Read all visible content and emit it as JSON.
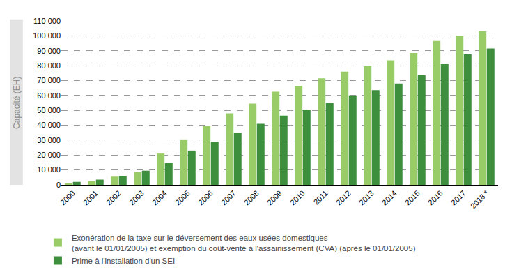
{
  "chart_data": {
    "type": "bar",
    "y_label": "Capacité (EH)",
    "categories": [
      "2000",
      "2001",
      "2002",
      "2003",
      "2004",
      "2005",
      "2006",
      "2007",
      "2008",
      "2009",
      "2010",
      "2011",
      "2012",
      "2013",
      "2014",
      "2015",
      "2016",
      "2017",
      "2018 *"
    ],
    "series": [
      {
        "name": "Exonération de la taxe sur le déversement des eaux usées domestiques\n(avant le 01/01/2005) et exemption du coût-vérité à l'assainissement (CVA) (après le 01/01/2005)",
        "color": "#99cc66",
        "values": [
          500,
          2500,
          5500,
          8500,
          21000,
          30500,
          39500,
          48000,
          54500,
          62500,
          66500,
          71500,
          76000,
          80000,
          83500,
          88500,
          96500,
          100000,
          103000
        ]
      },
      {
        "name": "Prime à l'installation d'un SEI",
        "color": "#3d8f3d",
        "values": [
          2000,
          3500,
          6000,
          9500,
          14500,
          23000,
          29000,
          35000,
          41000,
          46500,
          50500,
          55000,
          60000,
          63500,
          68000,
          73500,
          81000,
          87500,
          91500
        ]
      }
    ],
    "ylim": [
      0,
      110000
    ],
    "yticks": [
      0,
      {
        "value": 10000,
        "label": "10 000"
      },
      {
        "value": 20000,
        "label": "20 000"
      },
      {
        "value": 30000,
        "label": "30 000"
      },
      {
        "value": 40000,
        "label": "40 000"
      },
      {
        "value": 50000,
        "label": "50 000"
      },
      {
        "value": 60000,
        "label": "60 000"
      },
      {
        "value": 70000,
        "label": "70 000"
      },
      {
        "value": 80000,
        "label": "80 000"
      },
      {
        "value": 90000,
        "label": "90 000"
      },
      {
        "value": 100000,
        "label": "100 000"
      },
      {
        "value": 110000,
        "label": "110 000"
      }
    ],
    "grid": true,
    "legend": "bottom"
  }
}
